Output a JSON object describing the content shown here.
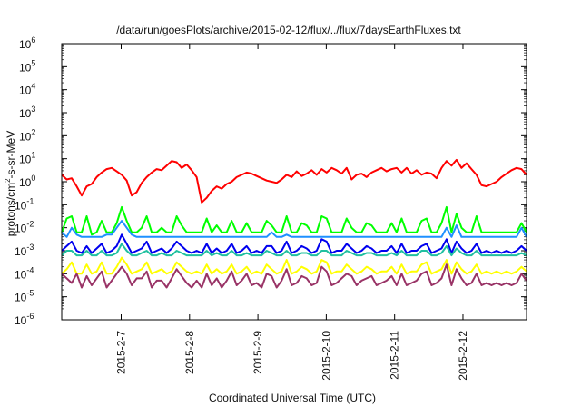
{
  "chart_data": {
    "type": "line",
    "title": "/data/run/goesPlots/archive/2015-02-12/flux/../flux/7daysEarthFluxes.txt",
    "xlabel": "Coordinated Universal Time (UTC)",
    "ylabel": "protons/cm²-s-sr-MeV",
    "ylabel_parts": {
      "pre": "protons/cm",
      "sup": "2",
      "post": "-s-sr-MeV"
    },
    "y_scale": "log",
    "ylim_exponents": [
      -6,
      6
    ],
    "y_ticks": [
      {
        "base": "10",
        "exp": "-6"
      },
      {
        "base": "10",
        "exp": "-5"
      },
      {
        "base": "10",
        "exp": "-4"
      },
      {
        "base": "10",
        "exp": "-3"
      },
      {
        "base": "10",
        "exp": "-2"
      },
      {
        "base": "10",
        "exp": "-1"
      },
      {
        "base": "10",
        "exp": "0"
      },
      {
        "base": "10",
        "exp": "1"
      },
      {
        "base": "10",
        "exp": "2"
      },
      {
        "base": "10",
        "exp": "3"
      },
      {
        "base": "10",
        "exp": "4"
      },
      {
        "base": "10",
        "exp": "5"
      },
      {
        "base": "10",
        "exp": "6"
      }
    ],
    "x_range_days": [
      "2015-02-06.13",
      "2015-02-12.93"
    ],
    "x_ticks": [
      "2015-2-7",
      "2015-2-8",
      "2015-2-9",
      "2015-2-10",
      "2015-2-11",
      "2015-2-12"
    ],
    "grid": false,
    "legend": "none",
    "series": [
      {
        "color": "#ff0000",
        "log10_values": [
          0.3,
          0.1,
          0.15,
          -0.2,
          -0.6,
          -0.2,
          -0.1,
          0.2,
          0.4,
          0.55,
          0.6,
          0.45,
          0.3,
          0.05,
          -0.6,
          -0.45,
          -0.05,
          0.2,
          0.4,
          0.55,
          0.5,
          0.7,
          0.9,
          0.85,
          0.6,
          0.75,
          0.5,
          0.2,
          -0.9,
          -0.7,
          -0.4,
          -0.2,
          -0.3,
          -0.1,
          0.0,
          0.2,
          0.3,
          0.4,
          0.35,
          0.25,
          0.15,
          0.05,
          0.0,
          -0.05,
          0.1,
          0.3,
          0.2,
          0.45,
          0.25,
          0.35,
          0.5,
          0.3,
          0.55,
          0.4,
          0.6,
          0.5,
          0.35,
          0.6,
          0.1,
          0.3,
          0.35,
          0.2,
          0.4,
          0.5,
          0.6,
          0.45,
          0.55,
          0.6,
          0.4,
          0.6,
          0.35,
          0.5,
          0.3,
          0.4,
          0.35,
          0.15,
          0.6,
          0.9,
          0.7,
          0.95,
          0.6,
          0.8,
          0.55,
          0.3,
          -0.15,
          -0.2,
          -0.1,
          0.0,
          0.2,
          0.35,
          0.5,
          0.6,
          0.55,
          0.3
        ],
        "log10_values_alt": null
      },
      {
        "color": "#00ff00",
        "log10_values": [
          -2.2,
          -1.6,
          -1.5,
          -2.2,
          -2.2,
          -1.5,
          -2.3,
          -2.2,
          -1.7,
          -2.2,
          -2.2,
          -1.8,
          -1.1,
          -1.7,
          -2.2,
          -2.2,
          -2.0,
          -1.5,
          -2.2,
          -2.2,
          -2.0,
          -2.2,
          -2.2,
          -1.5,
          -1.9,
          -2.2,
          -2.2,
          -2.2,
          -2.2,
          -1.6,
          -2.2,
          -1.9,
          -2.2,
          -2.2,
          -1.7,
          -2.2,
          -2.2,
          -1.8,
          -2.2,
          -2.2,
          -2.2,
          -1.7,
          -1.9,
          -2.2,
          -2.2,
          -1.5,
          -2.2,
          -2.2,
          -1.8,
          -1.9,
          -2.2,
          -2.2,
          -1.5,
          -1.6,
          -2.2,
          -2.2,
          -2.2,
          -1.6,
          -2.0,
          -2.2,
          -2.2,
          -1.8,
          -1.9,
          -2.2,
          -2.2,
          -2.2,
          -1.8,
          -2.2,
          -1.6,
          -2.2,
          -2.2,
          -2.2,
          -1.7,
          -1.6,
          -2.2,
          -2.2,
          -1.8,
          -1.1,
          -2.2,
          -1.4,
          -2.0,
          -2.2,
          -2.2,
          -1.5,
          -2.2,
          -2.2,
          -2.2,
          -2.2,
          -2.2,
          -2.2,
          -2.2,
          -2.2,
          -1.8,
          -2.2
        ]
      },
      {
        "color": "#1e90ff",
        "log10_values": [
          -2.2,
          -2.4,
          -2.0,
          -2.3,
          -2.4,
          -2.4,
          -2.4,
          -2.4,
          -2.4,
          -2.3,
          -2.3,
          -2.0,
          -1.7,
          -2.0,
          -2.3,
          -2.4,
          -2.4,
          -2.4,
          -2.4,
          -2.4,
          -2.4,
          -2.4,
          -2.4,
          -2.4,
          -2.4,
          -2.4,
          -2.4,
          -2.4,
          -2.4,
          -2.4,
          -2.4,
          -2.4,
          -2.4,
          -2.4,
          -2.4,
          -2.4,
          -2.4,
          -2.4,
          -2.4,
          -2.4,
          -2.4,
          -2.4,
          -2.2,
          -2.4,
          -2.4,
          -2.3,
          -2.4,
          -2.4,
          -2.4,
          -2.4,
          -2.4,
          -2.4,
          -2.4,
          -2.4,
          -2.4,
          -2.4,
          -2.4,
          -2.4,
          -2.4,
          -2.4,
          -2.4,
          -2.4,
          -2.4,
          -2.4,
          -2.4,
          -2.4,
          -2.4,
          -2.4,
          -2.4,
          -2.4,
          -2.4,
          -2.4,
          -2.4,
          -2.4,
          -2.4,
          -2.4,
          -2.4,
          -2.0,
          -2.4,
          -1.9,
          -2.4,
          -2.4,
          -2.4,
          -2.4,
          -2.4,
          -2.4,
          -2.4,
          -2.4,
          -2.4,
          -2.4,
          -2.4,
          -2.4,
          -2.0,
          -2.4
        ]
      },
      {
        "color": "#0000ee",
        "log10_values": [
          -3.0,
          -2.8,
          -2.6,
          -3.0,
          -3.1,
          -2.8,
          -3.1,
          -2.9,
          -2.7,
          -3.1,
          -3.0,
          -2.8,
          -2.3,
          -2.7,
          -3.1,
          -3.0,
          -2.9,
          -2.6,
          -3.1,
          -3.0,
          -2.9,
          -3.1,
          -2.9,
          -2.6,
          -2.8,
          -3.0,
          -3.1,
          -3.0,
          -3.1,
          -2.7,
          -3.1,
          -2.9,
          -3.1,
          -3.0,
          -2.7,
          -3.1,
          -3.0,
          -2.8,
          -3.1,
          -3.0,
          -3.1,
          -2.8,
          -2.8,
          -3.1,
          -3.0,
          -2.6,
          -3.1,
          -3.0,
          -2.8,
          -2.9,
          -3.1,
          -3.0,
          -2.5,
          -2.6,
          -3.1,
          -3.0,
          -3.0,
          -2.7,
          -2.9,
          -3.1,
          -3.0,
          -2.8,
          -2.9,
          -3.1,
          -3.0,
          -3.0,
          -2.8,
          -3.1,
          -2.7,
          -3.1,
          -3.0,
          -3.0,
          -2.8,
          -2.7,
          -3.1,
          -3.0,
          -2.9,
          -2.5,
          -3.1,
          -2.6,
          -2.9,
          -3.1,
          -3.0,
          -2.7,
          -3.1,
          -3.0,
          -3.1,
          -3.0,
          -3.1,
          -3.0,
          -3.1,
          -3.0,
          -2.8,
          -3.0
        ]
      },
      {
        "color": "#20c0a0",
        "log10_values": [
          -3.2,
          -3.0,
          -3.0,
          -3.2,
          -3.2,
          -3.0,
          -3.2,
          -3.2,
          -3.0,
          -3.2,
          -3.2,
          -3.1,
          -2.7,
          -3.0,
          -3.2,
          -3.2,
          -3.1,
          -3.0,
          -3.2,
          -3.2,
          -3.1,
          -3.2,
          -3.2,
          -3.0,
          -3.1,
          -3.2,
          -3.2,
          -3.2,
          -3.2,
          -3.0,
          -3.2,
          -3.1,
          -3.2,
          -3.2,
          -3.0,
          -3.2,
          -3.2,
          -3.1,
          -3.2,
          -3.2,
          -3.2,
          -3.0,
          -3.1,
          -3.2,
          -3.2,
          -3.0,
          -3.2,
          -3.2,
          -3.1,
          -3.1,
          -3.2,
          -3.2,
          -3.0,
          -3.0,
          -3.2,
          -3.2,
          -3.2,
          -3.0,
          -3.1,
          -3.2,
          -3.2,
          -3.1,
          -3.1,
          -3.2,
          -3.2,
          -3.2,
          -3.1,
          -3.2,
          -3.0,
          -3.2,
          -3.2,
          -3.2,
          -3.0,
          -3.0,
          -3.2,
          -3.2,
          -3.1,
          -2.8,
          -3.2,
          -2.9,
          -3.1,
          -3.2,
          -3.2,
          -3.0,
          -3.2,
          -3.2,
          -3.2,
          -3.2,
          -3.2,
          -3.2,
          -3.2,
          -3.2,
          -3.1,
          -3.2
        ]
      },
      {
        "color": "#ffff00",
        "log10_values": [
          -4.0,
          -3.8,
          -3.5,
          -4.0,
          -4.0,
          -3.6,
          -4.0,
          -3.9,
          -3.5,
          -4.0,
          -4.0,
          -3.7,
          -3.3,
          -3.6,
          -4.0,
          -3.9,
          -3.8,
          -3.5,
          -4.0,
          -3.9,
          -3.8,
          -4.0,
          -3.9,
          -3.5,
          -3.7,
          -3.9,
          -4.0,
          -3.9,
          -4.0,
          -3.6,
          -4.0,
          -3.8,
          -4.0,
          -3.9,
          -3.6,
          -4.0,
          -3.9,
          -3.7,
          -4.0,
          -3.9,
          -4.0,
          -3.6,
          -3.8,
          -4.0,
          -3.9,
          -3.4,
          -4.0,
          -3.9,
          -3.7,
          -3.8,
          -4.0,
          -3.9,
          -3.4,
          -3.5,
          -4.0,
          -3.9,
          -3.9,
          -3.6,
          -3.8,
          -4.0,
          -3.9,
          -3.7,
          -3.8,
          -4.0,
          -3.9,
          -3.9,
          -3.7,
          -4.0,
          -3.6,
          -4.0,
          -3.9,
          -3.9,
          -3.6,
          -3.5,
          -4.0,
          -3.9,
          -3.8,
          -3.4,
          -4.0,
          -3.5,
          -3.8,
          -4.0,
          -3.9,
          -3.6,
          -4.0,
          -3.9,
          -4.0,
          -3.9,
          -4.0,
          -3.9,
          -4.0,
          -3.9,
          -3.7,
          -3.9
        ]
      },
      {
        "color": "#993366",
        "log10_values": [
          -4.0,
          -4.2,
          -4.4,
          -4.0,
          -4.6,
          -4.1,
          -4.5,
          -4.2,
          -3.9,
          -4.6,
          -4.3,
          -4.0,
          -3.7,
          -4.0,
          -4.5,
          -4.2,
          -4.2,
          -3.9,
          -4.6,
          -4.3,
          -4.3,
          -4.6,
          -4.2,
          -3.8,
          -4.1,
          -4.4,
          -4.6,
          -4.3,
          -4.6,
          -4.0,
          -4.5,
          -4.2,
          -4.6,
          -4.3,
          -3.9,
          -4.5,
          -4.3,
          -4.0,
          -4.5,
          -4.4,
          -4.6,
          -4.0,
          -4.1,
          -4.6,
          -4.3,
          -3.8,
          -4.5,
          -4.4,
          -4.1,
          -4.2,
          -4.5,
          -4.4,
          -3.7,
          -3.9,
          -4.5,
          -4.4,
          -4.2,
          -4.0,
          -4.1,
          -4.5,
          -4.3,
          -4.2,
          -4.1,
          -4.5,
          -4.4,
          -4.3,
          -4.1,
          -4.5,
          -4.0,
          -4.5,
          -4.4,
          -4.3,
          -4.0,
          -3.9,
          -4.5,
          -4.4,
          -4.2,
          -3.6,
          -4.5,
          -3.8,
          -4.2,
          -4.5,
          -4.4,
          -4.0,
          -4.5,
          -4.4,
          -4.5,
          -4.4,
          -4.5,
          -4.4,
          -4.5,
          -4.4,
          -4.0,
          -4.3
        ]
      }
    ]
  }
}
